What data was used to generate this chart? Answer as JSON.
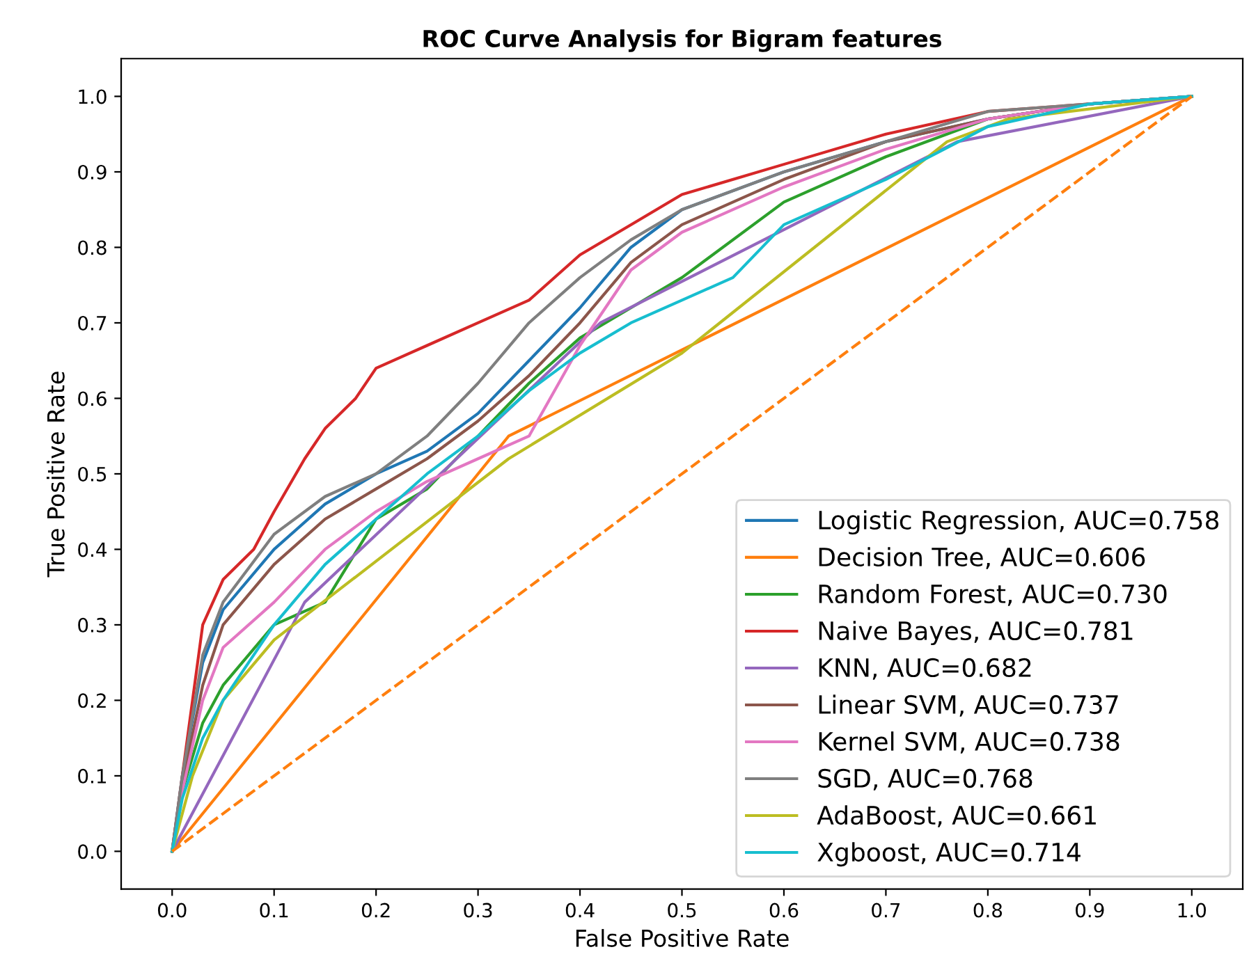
{
  "chart_data": {
    "type": "line",
    "title": "ROC Curve Analysis for Bigram features",
    "xlabel": "False Positive Rate",
    "ylabel": "True Positive Rate",
    "xlim": [
      -0.05,
      1.05
    ],
    "ylim": [
      -0.05,
      1.05
    ],
    "xticks": [
      {
        "value": 0,
        "label": "0.0"
      },
      0.1,
      0.2,
      0.3,
      0.4,
      0.5,
      0.6,
      0.7,
      0.8,
      0.9,
      {
        "value": 1,
        "label": "1.0"
      }
    ],
    "yticks": [
      {
        "value": 0,
        "label": "0.0"
      },
      0.1,
      0.2,
      0.3,
      0.4,
      0.5,
      0.6,
      0.7,
      0.8,
      0.9,
      {
        "value": 1,
        "label": "1.0"
      }
    ],
    "grid": false,
    "legend": "bottom right",
    "marker": "none",
    "line_style": "solid",
    "series": [
      {
        "name": "Logistic Regression, AUC=0.758",
        "color": "#1f77b4",
        "x": [
          0,
          0.01,
          0.03,
          0.05,
          0.1,
          0.15,
          0.2,
          0.25,
          0.3,
          0.35,
          0.4,
          0.45,
          0.5,
          0.6,
          0.7,
          0.8,
          0.9,
          1
        ],
        "values": [
          0,
          0.1,
          0.25,
          0.32,
          0.4,
          0.46,
          0.5,
          0.53,
          0.58,
          0.65,
          0.72,
          0.8,
          0.85,
          0.9,
          0.94,
          0.97,
          0.99,
          1
        ]
      },
      {
        "name": "Decision Tree, AUC=0.606",
        "color": "#ff7f0e",
        "x": [
          0,
          0.33,
          1
        ],
        "values": [
          0,
          0.55,
          1
        ]
      },
      {
        "name": "Random Forest, AUC=0.730",
        "color": "#2ca02c",
        "x": [
          0,
          0.01,
          0.03,
          0.05,
          0.1,
          0.15,
          0.2,
          0.25,
          0.3,
          0.35,
          0.4,
          0.45,
          0.5,
          0.6,
          0.7,
          0.8,
          0.9,
          1
        ],
        "values": [
          0,
          0.08,
          0.17,
          0.22,
          0.3,
          0.33,
          0.44,
          0.48,
          0.55,
          0.62,
          0.68,
          0.72,
          0.76,
          0.86,
          0.92,
          0.97,
          0.99,
          1
        ]
      },
      {
        "name": "Naive Bayes, AUC=0.781",
        "color": "#d62728",
        "x": [
          0,
          0.01,
          0.02,
          0.03,
          0.05,
          0.08,
          0.1,
          0.13,
          0.15,
          0.18,
          0.2,
          0.25,
          0.3,
          0.35,
          0.4,
          0.45,
          0.5,
          0.6,
          0.7,
          0.8,
          0.9,
          1
        ],
        "values": [
          0,
          0.1,
          0.2,
          0.3,
          0.36,
          0.4,
          0.45,
          0.52,
          0.56,
          0.6,
          0.64,
          0.67,
          0.7,
          0.73,
          0.79,
          0.83,
          0.87,
          0.91,
          0.95,
          0.98,
          0.99,
          1
        ]
      },
      {
        "name": "KNN, AUC=0.682",
        "color": "#9467bd",
        "x": [
          0,
          0.13,
          0.42,
          0.77,
          1
        ],
        "values": [
          0,
          0.33,
          0.7,
          0.94,
          1
        ]
      },
      {
        "name": "Linear SVM, AUC=0.737",
        "color": "#8c564b",
        "x": [
          0,
          0.01,
          0.03,
          0.05,
          0.1,
          0.15,
          0.2,
          0.25,
          0.3,
          0.35,
          0.4,
          0.45,
          0.5,
          0.6,
          0.7,
          0.8,
          0.9,
          1
        ],
        "values": [
          0,
          0.09,
          0.22,
          0.3,
          0.38,
          0.44,
          0.48,
          0.52,
          0.57,
          0.63,
          0.7,
          0.78,
          0.83,
          0.89,
          0.94,
          0.97,
          0.99,
          1
        ]
      },
      {
        "name": "Kernel SVM, AUC=0.738",
        "color": "#e377c2",
        "x": [
          0,
          0.01,
          0.03,
          0.05,
          0.1,
          0.15,
          0.2,
          0.25,
          0.3,
          0.35,
          0.4,
          0.45,
          0.5,
          0.6,
          0.7,
          0.8,
          0.9,
          1
        ],
        "values": [
          0,
          0.08,
          0.2,
          0.27,
          0.33,
          0.4,
          0.45,
          0.49,
          0.52,
          0.55,
          0.67,
          0.77,
          0.82,
          0.88,
          0.93,
          0.97,
          0.99,
          1
        ]
      },
      {
        "name": "SGD, AUC=0.768",
        "color": "#7f7f7f",
        "x": [
          0,
          0.01,
          0.03,
          0.05,
          0.1,
          0.15,
          0.2,
          0.25,
          0.3,
          0.35,
          0.4,
          0.45,
          0.5,
          0.6,
          0.7,
          0.8,
          0.9,
          1
        ],
        "values": [
          0,
          0.1,
          0.26,
          0.33,
          0.42,
          0.47,
          0.5,
          0.55,
          0.62,
          0.7,
          0.76,
          0.81,
          0.85,
          0.9,
          0.94,
          0.98,
          0.99,
          1
        ]
      },
      {
        "name": "AdaBoost, AUC=0.661",
        "color": "#bcbd22",
        "x": [
          0,
          0.02,
          0.05,
          0.1,
          0.33,
          0.5,
          0.76,
          0.82,
          1
        ],
        "values": [
          0,
          0.1,
          0.2,
          0.28,
          0.52,
          0.66,
          0.94,
          0.97,
          1
        ]
      },
      {
        "name": "Xgboost, AUC=0.714",
        "color": "#17becf",
        "x": [
          0,
          0.01,
          0.03,
          0.05,
          0.1,
          0.15,
          0.2,
          0.25,
          0.3,
          0.35,
          0.4,
          0.45,
          0.5,
          0.55,
          0.6,
          0.7,
          0.8,
          0.9,
          1
        ],
        "values": [
          0,
          0.07,
          0.15,
          0.2,
          0.3,
          0.38,
          0.44,
          0.5,
          0.55,
          0.61,
          0.66,
          0.7,
          0.73,
          0.76,
          0.83,
          0.89,
          0.96,
          0.99,
          1
        ]
      },
      {
        "color": "#ff7f0e",
        "line_style": "dashed",
        "x": [
          0,
          1
        ],
        "values": [
          0,
          1
        ]
      }
    ]
  }
}
